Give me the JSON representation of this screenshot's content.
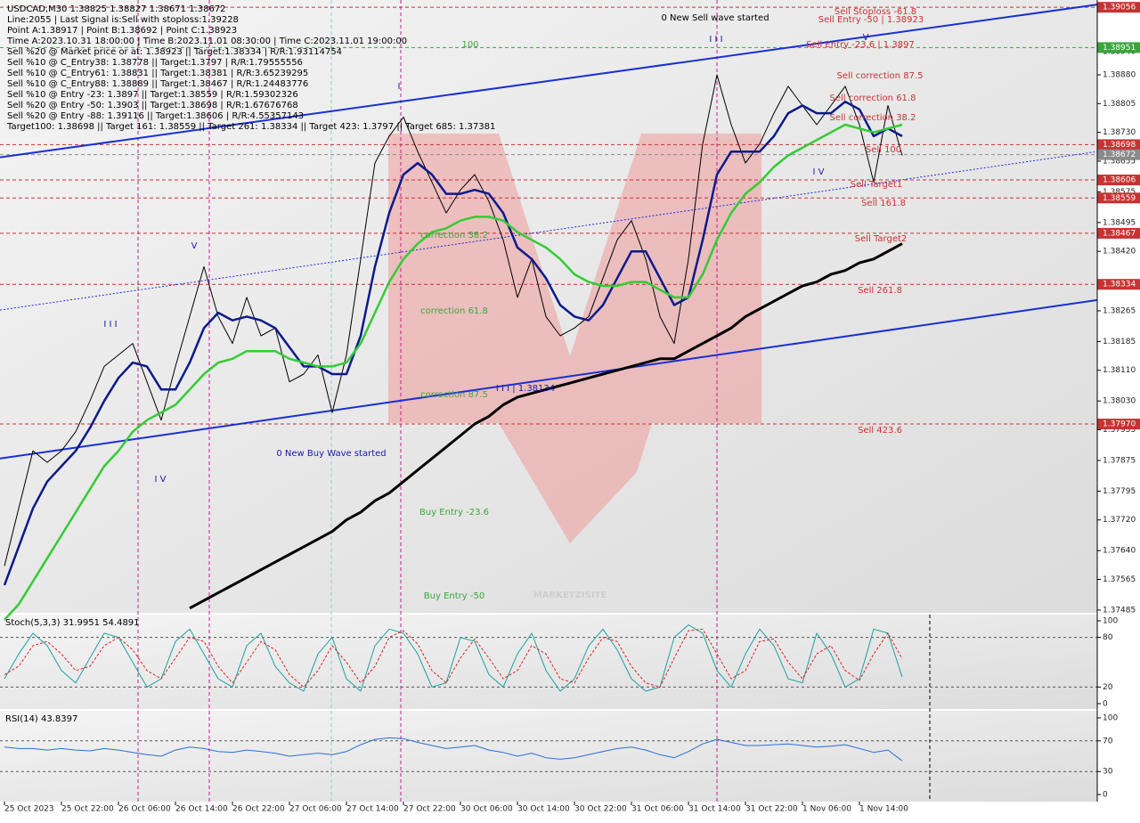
{
  "chart_data": [
    {
      "type": "line",
      "info_lines": [
        "USDCAD,M30  1.38825 1.38827 1.38671 1.38672",
        "Line:2055 | Last Signal is:Sell with stoploss:1.39228",
        "Point A:1.38917 | Point B:1.38692 | Point C:1.38923",
        "Time A:2023.10.31 18:00:00 | Time B:2023.11.01 08:30:00 | Time C:2023.11.01 19:00:00",
        "Sell %20 @ Market price or at: 1.38923 || Target:1.38334 | R/R:1.93114754",
        "Sell %10 @ C_Entry38: 1.38778 || Target:1.3797 | R/R:1.79555556",
        "Sell %10 @ C_Entry61: 1.38831 || Target:1.38381 | R/R:3.65239295",
        "Sell %10 @ C_Entry88: 1.38889 || Target:1.38467 | R/R:1.24483776",
        "Sell %10 @ Entry -23: 1.3897 || Target:1.38559 | R/R:1.59302326",
        "Sell %20 @ Entry -50: 1.3903 || Target:1.38698 | R/R:1.67676768",
        "Sell %20 @ Entry -88: 1.39116 || Target:1.38606 | R/R:4.55357143",
        "Target100: 1.38698 || Target 161: 1.38559 || Target 261: 1.38334 || Target 423: 1.3797 || Target 685: 1.37381"
      ],
      "watermark": "MARKETZISITE",
      "categories": [
        "25 Oct 2023",
        null,
        null,
        null,
        "25 Oct 22:00",
        null,
        null,
        null,
        "26 Oct 06:00",
        null,
        null,
        null,
        "26 Oct 14:00",
        null,
        null,
        null,
        "26 Oct 22:00",
        null,
        null,
        null,
        "27 Oct 06:00",
        null,
        null,
        null,
        "27 Oct 14:00",
        null,
        null,
        null,
        "27 Oct 22:00",
        null,
        null,
        null,
        "30 Oct 06:00",
        null,
        null,
        null,
        "30 Oct 14:00",
        null,
        null,
        null,
        "30 Oct 22:00",
        null,
        null,
        null,
        "31 Oct 06:00",
        null,
        null,
        null,
        "31 Oct 14:00",
        null,
        null,
        null,
        "31 Oct 22:00",
        null,
        null,
        null,
        "1 Nov 06:00",
        null,
        null,
        null,
        "1 Nov 14:00",
        null,
        null,
        null
      ],
      "series": [
        {
          "name": "price",
          "color": "#000000",
          "width": 1,
          "values": [
            1.376,
            1.3775,
            1.379,
            1.3787,
            1.379,
            1.3795,
            1.3803,
            1.3812,
            1.3815,
            1.3818,
            1.3808,
            1.3798,
            1.3812,
            1.3825,
            1.3838,
            1.3825,
            1.3818,
            1.383,
            1.382,
            1.3822,
            1.3808,
            1.381,
            1.3815,
            1.38,
            1.3815,
            1.384,
            1.3865,
            1.3872,
            1.3877,
            1.3868,
            1.386,
            1.3852,
            1.3858,
            1.3862,
            1.3855,
            1.3845,
            1.383,
            1.384,
            1.3825,
            1.382,
            1.3822,
            1.3825,
            1.3835,
            1.3845,
            1.385,
            1.384,
            1.3825,
            1.3818,
            1.384,
            1.387,
            1.3888,
            1.3875,
            1.3865,
            1.387,
            1.3878,
            1.3885,
            1.388,
            1.3875,
            1.388,
            1.3885,
            1.3875,
            1.386,
            1.388,
            1.3867
          ]
        },
        {
          "name": "ma-fast",
          "color": "#0a1a8c",
          "width": 2.5,
          "values": [
            1.3755,
            1.3765,
            1.3775,
            1.3782,
            1.3786,
            1.379,
            1.3796,
            1.3803,
            1.3809,
            1.3813,
            1.3812,
            1.3806,
            1.3806,
            1.3813,
            1.3822,
            1.3826,
            1.3824,
            1.3825,
            1.3824,
            1.3822,
            1.3817,
            1.3812,
            1.3812,
            1.381,
            1.381,
            1.382,
            1.3838,
            1.3852,
            1.3862,
            1.3865,
            1.3862,
            1.3857,
            1.3857,
            1.3858,
            1.3857,
            1.3852,
            1.3843,
            1.384,
            1.3835,
            1.3828,
            1.3825,
            1.3824,
            1.3828,
            1.3835,
            1.3842,
            1.3842,
            1.3835,
            1.3828,
            1.383,
            1.3845,
            1.3862,
            1.3868,
            1.3868,
            1.3868,
            1.3872,
            1.3878,
            1.388,
            1.3878,
            1.3878,
            1.3881,
            1.3879,
            1.3872,
            1.3874,
            1.3872
          ]
        },
        {
          "name": "ma-mid",
          "color": "#33cc33",
          "width": 2.5,
          "values": [
            1.3746,
            1.375,
            1.3756,
            1.3762,
            1.3768,
            1.3774,
            1.378,
            1.3786,
            1.379,
            1.3795,
            1.3798,
            1.38,
            1.3802,
            1.3806,
            1.381,
            1.3813,
            1.3814,
            1.3816,
            1.3816,
            1.3816,
            1.3814,
            1.3813,
            1.3812,
            1.3812,
            1.3813,
            1.3818,
            1.3826,
            1.3834,
            1.384,
            1.3844,
            1.3847,
            1.3848,
            1.385,
            1.3851,
            1.3851,
            1.385,
            1.3847,
            1.3845,
            1.3843,
            1.384,
            1.3836,
            1.3834,
            1.3833,
            1.3833,
            1.3834,
            1.3834,
            1.3832,
            1.383,
            1.383,
            1.3836,
            1.3845,
            1.3852,
            1.3857,
            1.386,
            1.3864,
            1.3867,
            1.3869,
            1.3871,
            1.3873,
            1.3875,
            1.3874,
            1.3873,
            1.3874,
            1.3875
          ]
        },
        {
          "name": "ma-slow",
          "color": "#000000",
          "width": 3,
          "values": [
            null,
            null,
            null,
            null,
            null,
            null,
            null,
            null,
            null,
            null,
            null,
            null,
            null,
            1.3749,
            1.3751,
            1.3753,
            1.3755,
            1.3757,
            1.3759,
            1.3761,
            1.3763,
            1.3765,
            1.3767,
            1.3769,
            1.3772,
            1.3774,
            1.3777,
            1.3779,
            1.3782,
            1.3785,
            1.3788,
            1.3791,
            1.3794,
            1.3797,
            1.3799,
            1.3802,
            1.3804,
            1.3805,
            1.3806,
            1.3807,
            1.3808,
            1.3809,
            1.381,
            1.3811,
            1.3812,
            1.3813,
            1.3814,
            1.3814,
            1.3816,
            1.3818,
            1.382,
            1.3822,
            1.3825,
            1.3827,
            1.3829,
            1.3831,
            1.3833,
            1.3834,
            1.3836,
            1.3837,
            1.3839,
            1.384,
            1.3842,
            1.3844
          ]
        }
      ],
      "trend_lines": [
        {
          "start": 1.38665,
          "end": 1.39063,
          "color": "#1a2fd6",
          "style": "solid"
        },
        {
          "start": 1.3788,
          "end": 1.38293,
          "color": "#1a2fd6",
          "style": "solid"
        },
        {
          "start": 1.38267,
          "end": 1.3868,
          "color": "#1a2fd6",
          "style": "dotted"
        }
      ],
      "levels": [
        {
          "value": 1.39056,
          "color": "#c83232"
        },
        {
          "value": 1.38951,
          "color": "#3aa63a"
        },
        {
          "value": 1.38698,
          "color": "#c83232"
        },
        {
          "value": 1.38672,
          "color": "#8a8a8a",
          "label": "1.38672"
        },
        {
          "value": 1.38606,
          "color": "#c83232"
        },
        {
          "value": 1.38559,
          "color": "#c83232"
        },
        {
          "value": 1.38467,
          "color": "#c83232"
        },
        {
          "value": 1.38334,
          "color": "#c83232"
        },
        {
          "value": 1.3797,
          "color": "#c83232",
          "label": "1.37970"
        }
      ],
      "annotations": [
        "0 New Sell wave started",
        "0 New Buy Wave started",
        "100",
        "correction 38.2",
        "correction 61.8",
        "correction 87.5",
        "Buy Entry -23.6",
        "Buy Entry -50",
        "Sell Stoploss -61.8",
        "Sell Entry -50 | 1.38923",
        "Sell Entry -23.6 | 1.3897",
        "Sell correction 87.5",
        "Sell correction 61.8",
        "Sell correction 38.2",
        "Sell 100",
        "Sell Target1",
        "Sell 161.8",
        "Sell Target2",
        "Sell 261.8",
        "Sell 423.6",
        "I I I | 1.38134"
      ],
      "wave_labels": [
        "I",
        "V",
        "I I I",
        "I V",
        "I I I",
        "I V",
        "V"
      ],
      "ylim": [
        1.37478,
        1.39075
      ],
      "yticks": [
        {
          "value": 1.3894,
          "label": "1.38940"
        },
        {
          "value": 1.3888,
          "label": "1.38880"
        },
        1.38805,
        {
          "value": 1.3873,
          "label": "1.38730"
        },
        1.38655,
        1.38575,
        1.38495,
        {
          "value": 1.3842,
          "label": "1.38420"
        },
        1.38265,
        1.38185,
        {
          "value": 1.3811,
          "label": "1.38110"
        },
        {
          "value": 1.3803,
          "label": "1.38030"
        },
        1.37955,
        1.37875,
        1.37795,
        {
          "value": 1.3772,
          "label": "1.37720"
        },
        {
          "value": 1.3764,
          "label": "1.37640"
        },
        1.37565,
        1.37485
      ]
    },
    {
      "type": "line",
      "title": "Stoch(5,3,3) 31.9951 54.4891",
      "series": [
        {
          "name": "main",
          "color": "#20a0a0",
          "width": 1,
          "dash": "none",
          "values": [
            30,
            60,
            85,
            70,
            40,
            25,
            55,
            85,
            80,
            50,
            20,
            30,
            75,
            90,
            60,
            30,
            20,
            70,
            85,
            45,
            25,
            15,
            60,
            80,
            30,
            15,
            70,
            90,
            85,
            60,
            20,
            25,
            80,
            75,
            35,
            20,
            60,
            85,
            40,
            15,
            30,
            70,
            90,
            65,
            30,
            15,
            20,
            80,
            95,
            85,
            40,
            20,
            60,
            90,
            70,
            30,
            25,
            85,
            60,
            20,
            30,
            90,
            85,
            32
          ]
        },
        {
          "name": "signal",
          "color": "#e02020",
          "width": 1,
          "dash": "3 2",
          "values": [
            35,
            45,
            70,
            75,
            60,
            40,
            45,
            70,
            80,
            65,
            40,
            30,
            55,
            80,
            75,
            45,
            25,
            50,
            75,
            65,
            35,
            20,
            40,
            70,
            50,
            25,
            45,
            80,
            88,
            72,
            40,
            25,
            55,
            78,
            55,
            30,
            40,
            70,
            60,
            30,
            25,
            55,
            80,
            75,
            45,
            25,
            20,
            55,
            88,
            90,
            60,
            30,
            40,
            75,
            78,
            50,
            30,
            60,
            70,
            40,
            28,
            60,
            85,
            54
          ]
        }
      ],
      "ylim": [
        -6.5,
        107.5
      ],
      "yticks": [
        0,
        20,
        80,
        100
      ]
    },
    {
      "type": "line",
      "title": "RSI(14) 43.8397",
      "series": [
        {
          "name": "rsi",
          "color": "#2a6fd6",
          "width": 1,
          "dash": "none",
          "values": [
            62,
            60,
            60,
            58,
            60,
            58,
            57,
            60,
            58,
            55,
            52,
            50,
            58,
            62,
            60,
            56,
            55,
            58,
            56,
            54,
            50,
            52,
            54,
            52,
            56,
            65,
            72,
            74,
            73,
            68,
            64,
            60,
            62,
            64,
            58,
            55,
            50,
            54,
            48,
            46,
            48,
            52,
            56,
            60,
            62,
            58,
            52,
            48,
            56,
            66,
            72,
            68,
            64,
            64,
            65,
            66,
            64,
            62,
            63,
            65,
            60,
            55,
            58,
            44
          ]
        }
      ],
      "ylim": [
        -9.3,
        109.3
      ],
      "yticks": [
        0,
        30,
        70,
        100
      ]
    }
  ]
}
